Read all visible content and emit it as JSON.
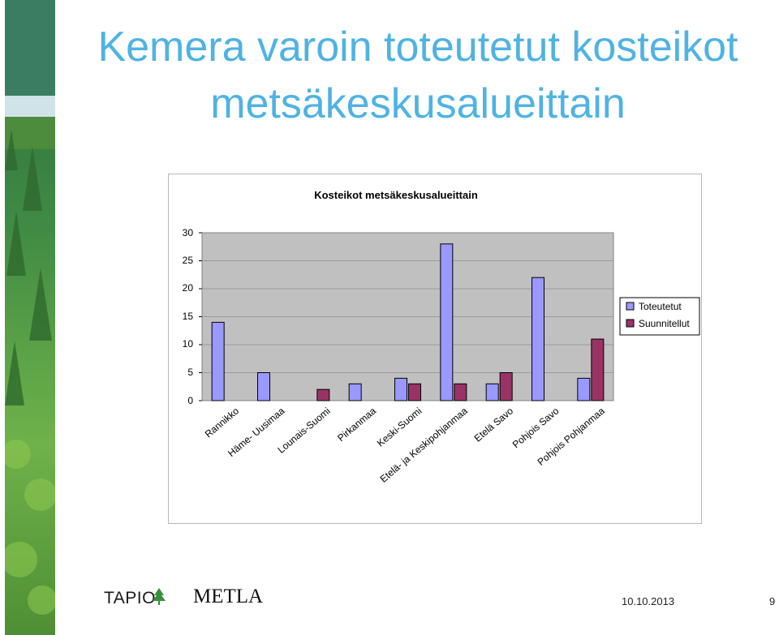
{
  "slide": {
    "title_line1": "Kemera varoin toteutetut kosteikot",
    "title_line2": "metsäkeskusalueittain",
    "footer": {
      "logo_tapio": "TAPIO",
      "logo_metla": "METLA",
      "date": "10.10.2013",
      "page_number": "9"
    }
  },
  "colors": {
    "title": "#4fb3e3",
    "series_toteutetut": "#9999ff",
    "series_suunnitellut": "#993366",
    "plot_background": "#c0c0c0"
  },
  "chart_data": {
    "type": "bar",
    "title": "Kosteikot metsäkeskusalueittain",
    "categories": [
      "Rannikko",
      "Häme- Uusimaa",
      "Lounais-Suomi",
      "Pirkanmaa",
      "Keski-Suomi",
      "Etelä- ja Keskipohjanmaa",
      "Etelä Savo",
      "Pohjois Savo",
      "Pohjois Pohjanmaa"
    ],
    "series": [
      {
        "name": "Toteutetut",
        "values": [
          14,
          5,
          0,
          3,
          4,
          28,
          3,
          22,
          4
        ]
      },
      {
        "name": "Suunnitellut",
        "values": [
          0,
          0,
          2,
          0,
          3,
          3,
          5,
          0,
          11
        ]
      }
    ],
    "y_ticks": [
      "0",
      "5",
      "10",
      "15",
      "20",
      "25",
      "30"
    ],
    "ylim": [
      0,
      30
    ],
    "grid": true,
    "legend_position": "right"
  }
}
